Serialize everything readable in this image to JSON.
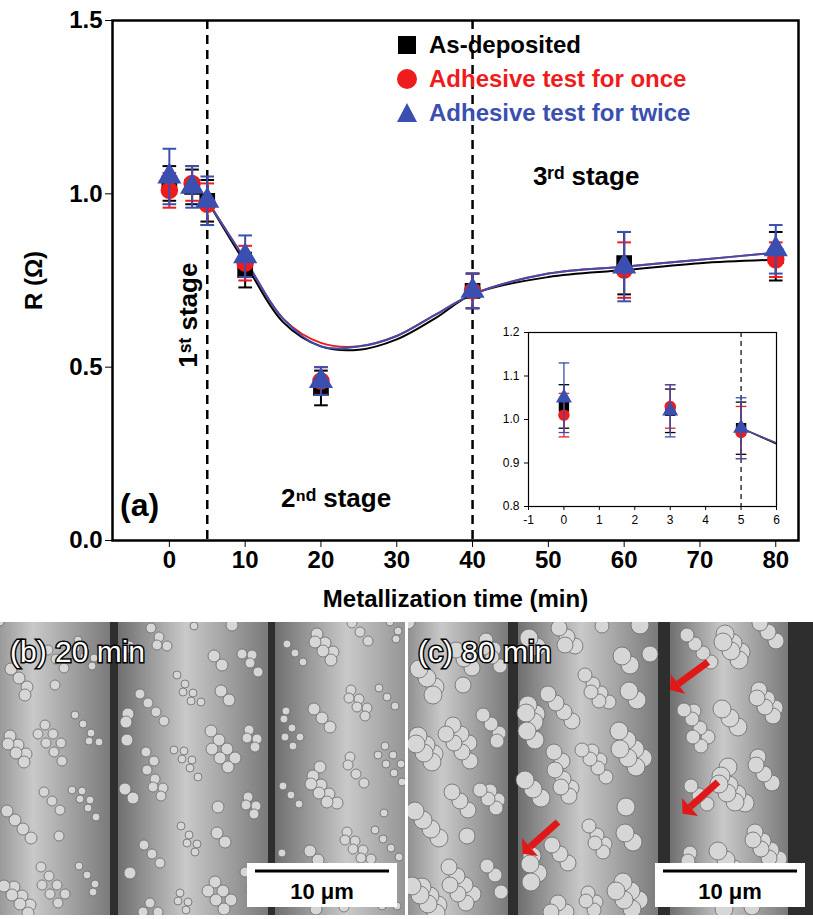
{
  "chart_data": {
    "type": "scatter",
    "xlabel": "Metallization time (min)",
    "ylabel": "R (Ω)",
    "xlim": [
      -7.5,
      83
    ],
    "xticks": [
      0,
      10,
      20,
      30,
      40,
      50,
      60,
      70,
      80
    ],
    "ylim": [
      0,
      1.5
    ],
    "yticks": [
      {
        "value": 0,
        "label": "0.0"
      },
      0.5,
      {
        "value": 1,
        "label": "1.0"
      },
      1.5
    ],
    "legend": "top-right",
    "panel_label": "(a)",
    "annotations": [
      "1ˢᵗ stage",
      "2ⁿᵈ stage",
      "3ʳᵈ stage"
    ],
    "stage_boundaries": [
      5,
      40
    ],
    "x": [
      0,
      3,
      5,
      10,
      20,
      40,
      60,
      80
    ],
    "series": [
      {
        "name": "As-deposited",
        "color": "#000000",
        "marker": "square",
        "values": [
          1.03,
          1.02,
          0.98,
          0.78,
          0.44,
          0.72,
          0.8,
          0.82
        ],
        "errors": [
          0.05,
          0.05,
          0.06,
          0.05,
          0.05,
          0.05,
          0.09,
          0.07
        ],
        "fit": {
          "x": [
            5,
            10,
            15,
            20,
            25,
            30,
            35,
            40,
            50,
            60,
            70,
            80
          ],
          "values": [
            0.98,
            0.8,
            0.63,
            0.56,
            0.55,
            0.58,
            0.64,
            0.71,
            0.76,
            0.78,
            0.8,
            0.81
          ]
        }
      },
      {
        "name": "Adhesive test for once",
        "color": "#ee1c1c",
        "marker": "circle",
        "values": [
          1.01,
          1.03,
          0.97,
          0.8,
          0.46,
          0.72,
          0.78,
          0.81
        ],
        "errors": [
          0.05,
          0.05,
          0.06,
          0.05,
          0.04,
          0.05,
          0.08,
          0.05
        ],
        "fit": {
          "x": [
            5,
            10,
            15,
            20,
            25,
            30,
            35,
            40,
            50,
            60,
            70,
            80
          ],
          "values": [
            0.98,
            0.81,
            0.64,
            0.57,
            0.56,
            0.59,
            0.65,
            0.71,
            0.77,
            0.79,
            0.81,
            0.83
          ]
        }
      },
      {
        "name": "Adhesive test for twice",
        "color": "#3a4fb0",
        "marker": "triangle",
        "values": [
          1.05,
          1.02,
          0.98,
          0.82,
          0.46,
          0.72,
          0.79,
          0.84
        ],
        "errors": [
          0.08,
          0.06,
          0.07,
          0.06,
          0.04,
          0.05,
          0.1,
          0.07
        ],
        "fit": {
          "x": [
            5,
            10,
            15,
            20,
            25,
            30,
            35,
            40,
            50,
            60,
            70,
            80
          ],
          "values": [
            0.98,
            0.81,
            0.64,
            0.56,
            0.56,
            0.59,
            0.65,
            0.71,
            0.77,
            0.79,
            0.81,
            0.83
          ]
        }
      }
    ],
    "inset": {
      "xlim": [
        -1,
        6
      ],
      "xticks": [
        -1,
        0,
        1,
        2,
        3,
        4,
        5,
        6
      ],
      "ylim": [
        0.8,
        1.2
      ],
      "yticks": [
        0.8,
        0.9,
        {
          "value": 1,
          "label": "1.0"
        },
        1.1,
        1.2
      ],
      "stage_boundaries": [
        5
      ]
    }
  },
  "images": [
    {
      "label": "(b) 20 min",
      "scale_bar": "10 μm"
    },
    {
      "label": "(c) 80 min",
      "scale_bar": "10 μm"
    }
  ]
}
